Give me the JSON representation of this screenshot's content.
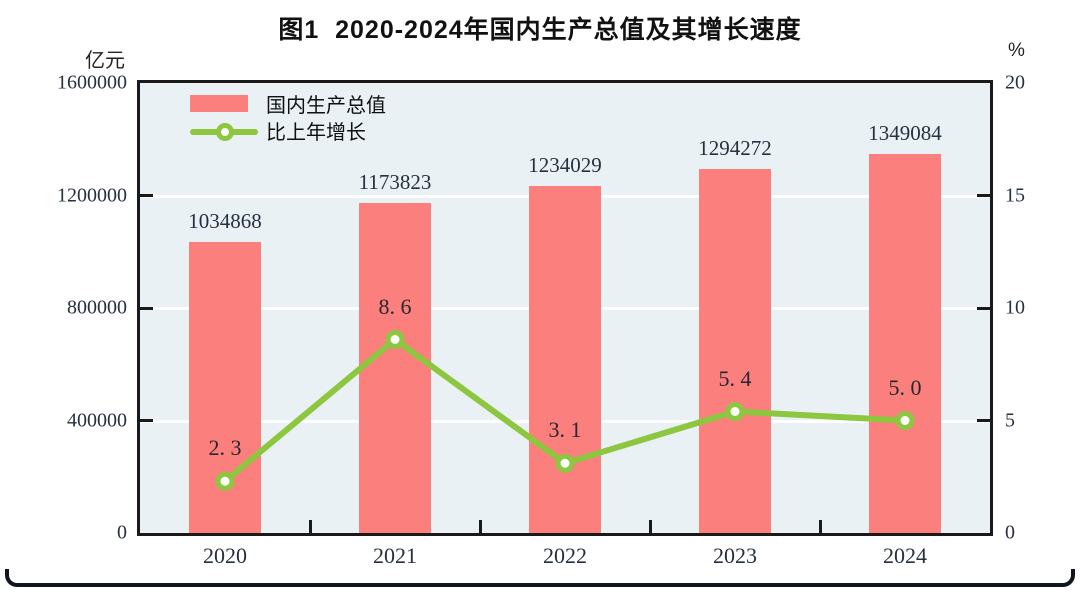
{
  "title": "图1  2020-2024年国内生产总值及其增长速度",
  "left_axis": {
    "unit": "亿元",
    "ticks": [
      "1600000",
      "1200000",
      "800000",
      "400000",
      "0"
    ]
  },
  "right_axis": {
    "unit": "%",
    "ticks": [
      "20",
      "15",
      "10",
      "5",
      "0"
    ]
  },
  "legend": {
    "bar_label": "国内生产总值",
    "line_label": "比上年增长"
  },
  "colors": {
    "bar": "#FB807D",
    "line": "#8DC63F",
    "plot_background": "#E9F1F5",
    "gridline": "#FFFFFF",
    "frame": "#1A1A1A"
  },
  "chart_data": {
    "type": "bar+line",
    "categories": [
      "2020",
      "2021",
      "2022",
      "2023",
      "2024"
    ],
    "series": [
      {
        "name": "国内生产总值",
        "type": "bar",
        "axis": "left",
        "values": [
          1034868,
          1173823,
          1234029,
          1294272,
          1349084
        ],
        "labels": [
          "1034868",
          "1173823",
          "1234029",
          "1294272",
          "1349084"
        ]
      },
      {
        "name": "比上年增长",
        "type": "line",
        "axis": "right",
        "values": [
          2.3,
          8.6,
          3.1,
          5.4,
          5.0
        ],
        "labels": [
          "2. 3",
          "8. 6",
          "3. 1",
          "5. 4",
          "5. 0"
        ]
      }
    ],
    "left_ylabel": "亿元",
    "right_ylabel": "%",
    "left_ylim": [
      0,
      1600000
    ],
    "right_ylim": [
      0,
      20
    ],
    "grid": true,
    "legend_position": "top-left-inside"
  }
}
